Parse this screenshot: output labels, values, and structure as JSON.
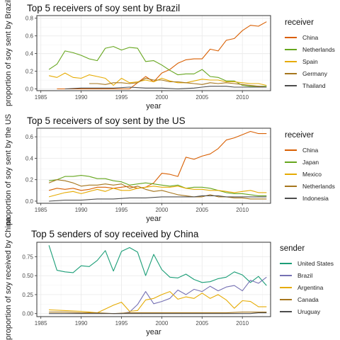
{
  "chart_data": [
    {
      "type": "line",
      "title": "Top 5 receivers of soy sent by Brazil",
      "xlabel": "year",
      "ylabel": "proportion of soy sent by Brazil",
      "xlim": [
        1984.5,
        2013.5
      ],
      "ylim": [
        -0.02,
        0.83
      ],
      "xticks": [
        1985,
        1990,
        1995,
        2000,
        2005,
        2010
      ],
      "yticks": [
        0.0,
        0.2,
        0.4,
        0.6,
        0.8
      ],
      "grid": true,
      "legend_title": "receiver",
      "legend_position": "right",
      "series": [
        {
          "name": "China",
          "color": "#d95f02",
          "x": [
            1987,
            1988,
            1989,
            1990,
            1991,
            1992,
            1993,
            1994,
            1995,
            1996,
            1997,
            1998,
            1999,
            2000,
            2001,
            2002,
            2003,
            2004,
            2005,
            2006,
            2007,
            2008,
            2009,
            2010,
            2011,
            2012,
            2013
          ],
          "y": [
            0,
            0,
            0,
            0,
            0,
            0,
            0,
            0,
            0,
            0,
            0.07,
            0.14,
            0.08,
            0.18,
            0.22,
            0.29,
            0.33,
            0.34,
            0.34,
            0.45,
            0.43,
            0.55,
            0.57,
            0.66,
            0.72,
            0.71,
            0.76
          ]
        },
        {
          "name": "Netherlands",
          "color": "#66a61e",
          "x": [
            1986,
            1987,
            1988,
            1989,
            1990,
            1991,
            1992,
            1993,
            1994,
            1995,
            1996,
            1997,
            1998,
            1999,
            2000,
            2001,
            2002,
            2003,
            2004,
            2005,
            2006,
            2007,
            2008,
            2009,
            2010,
            2011,
            2012,
            2013
          ],
          "y": [
            0.22,
            0.28,
            0.43,
            0.41,
            0.38,
            0.34,
            0.32,
            0.46,
            0.48,
            0.44,
            0.47,
            0.46,
            0.31,
            0.32,
            0.27,
            0.21,
            0.16,
            0.17,
            0.17,
            0.22,
            0.14,
            0.13,
            0.09,
            0.09,
            0.04,
            0.03,
            0.03,
            0.03
          ]
        },
        {
          "name": "Spain",
          "color": "#e6ab02",
          "x": [
            1986,
            1987,
            1988,
            1989,
            1990,
            1991,
            1992,
            1993,
            1994,
            1995,
            1996,
            1997,
            1998,
            1999,
            2000,
            2001,
            2002,
            2003,
            2004,
            2005,
            2006,
            2007,
            2008,
            2009,
            2010,
            2011,
            2012,
            2013
          ],
          "y": [
            0.15,
            0.13,
            0.18,
            0.13,
            0.12,
            0.16,
            0.14,
            0.12,
            0.04,
            0.12,
            0.07,
            0.08,
            0.1,
            0.08,
            0.12,
            0.09,
            0.07,
            0.07,
            0.09,
            0.11,
            0.1,
            0.1,
            0.08,
            0.08,
            0.07,
            0.06,
            0.06,
            0.04
          ]
        },
        {
          "name": "Germany",
          "color": "#a6761d",
          "x": [
            1991,
            1992,
            1993,
            1994,
            1995,
            1996,
            1997,
            1998,
            1999,
            2000,
            2001,
            2002,
            2003,
            2004,
            2005,
            2006,
            2007,
            2008,
            2009,
            2010,
            2011,
            2012,
            2013
          ],
          "y": [
            0.06,
            0.06,
            0.05,
            0.07,
            0.07,
            0.06,
            0.07,
            0.12,
            0.1,
            0.1,
            0.08,
            0.08,
            0.07,
            0.06,
            0.05,
            0.07,
            0.06,
            0.07,
            0.06,
            0.05,
            0.04,
            0.03,
            0.02
          ]
        },
        {
          "name": "Thailand",
          "color": "#4d4d4d",
          "x": [
            1988,
            1990,
            1992,
            1994,
            1996,
            1998,
            2000,
            2002,
            2004,
            2005,
            2006,
            2007,
            2008,
            2009,
            2010,
            2011,
            2012,
            2013
          ],
          "y": [
            0,
            0.01,
            0.01,
            0.01,
            0.02,
            0.01,
            0.01,
            0,
            0.01,
            0.02,
            0.03,
            0.03,
            0.03,
            0.02,
            0.02,
            0.02,
            0.02,
            0.02
          ]
        }
      ]
    },
    {
      "type": "line",
      "title": "Top 5 receivers of soy sent by the US",
      "xlabel": "year",
      "ylabel": "proportion of soy sent by the US",
      "xlim": [
        1984.5,
        2013.5
      ],
      "ylim": [
        -0.02,
        0.68
      ],
      "xticks": [
        1985,
        1990,
        1995,
        2000,
        2005,
        2010
      ],
      "yticks": [
        0.0,
        0.2,
        0.4,
        0.6
      ],
      "grid": true,
      "legend_title": "receiver",
      "legend_position": "right",
      "series": [
        {
          "name": "China",
          "color": "#d95f02",
          "x": [
            1986,
            1987,
            1988,
            1989,
            1990,
            1991,
            1992,
            1993,
            1994,
            1995,
            1996,
            1997,
            1998,
            1999,
            2000,
            2001,
            2002,
            2003,
            2004,
            2005,
            2006,
            2007,
            2008,
            2009,
            2010,
            2011,
            2012,
            2013
          ],
          "y": [
            0.1,
            0.12,
            0.11,
            0.12,
            0.1,
            0.11,
            0.13,
            0.13,
            0.12,
            0.13,
            0.14,
            0.12,
            0.13,
            0.17,
            0.26,
            0.25,
            0.23,
            0.41,
            0.39,
            0.42,
            0.44,
            0.49,
            0.57,
            0.59,
            0.62,
            0.65,
            0.63,
            0.63
          ]
        },
        {
          "name": "Japan",
          "color": "#66a61e",
          "x": [
            1986,
            1987,
            1988,
            1989,
            1990,
            1991,
            1992,
            1993,
            1994,
            1995,
            1996,
            1997,
            1998,
            1999,
            2000,
            2001,
            2002,
            2003,
            2004,
            2005,
            2006,
            2007,
            2008,
            2009,
            2010,
            2011,
            2012,
            2013
          ],
          "y": [
            0.19,
            0.2,
            0.23,
            0.23,
            0.24,
            0.23,
            0.21,
            0.21,
            0.19,
            0.18,
            0.15,
            0.16,
            0.17,
            0.16,
            0.15,
            0.14,
            0.15,
            0.12,
            0.13,
            0.13,
            0.12,
            0.1,
            0.08,
            0.07,
            0.07,
            0.06,
            0.05,
            0.05
          ]
        },
        {
          "name": "Mexico",
          "color": "#e6ab02",
          "x": [
            1986,
            1987,
            1988,
            1989,
            1990,
            1991,
            1992,
            1993,
            1994,
            1995,
            1996,
            1997,
            1998,
            1999,
            2000,
            2001,
            2002,
            2003,
            2004,
            2005,
            2006,
            2007,
            2008,
            2009,
            2010,
            2011,
            2012,
            2013
          ],
          "y": [
            0.04,
            0.06,
            0.08,
            0.09,
            0.07,
            0.09,
            0.11,
            0.09,
            0.12,
            0.1,
            0.1,
            0.12,
            0.13,
            0.14,
            0.13,
            0.13,
            0.14,
            0.12,
            0.11,
            0.11,
            0.1,
            0.1,
            0.09,
            0.08,
            0.09,
            0.1,
            0.08,
            0.08
          ]
        },
        {
          "name": "Netherlands",
          "color": "#a6761d",
          "x": [
            1986,
            1987,
            1988,
            1989,
            1990,
            1991,
            1992,
            1993,
            1994,
            1995,
            1996,
            1997,
            1998,
            1999,
            2000,
            2001,
            2002,
            2003,
            2004,
            2005,
            2006,
            2007,
            2008,
            2009,
            2010,
            2011,
            2012,
            2013
          ],
          "y": [
            0.17,
            0.2,
            0.19,
            0.17,
            0.14,
            0.15,
            0.15,
            0.16,
            0.15,
            0.16,
            0.12,
            0.14,
            0.11,
            0.09,
            0.1,
            0.08,
            0.06,
            0.05,
            0.04,
            0.04,
            0.06,
            0.04,
            0.04,
            0.03,
            0.03,
            0.02,
            0.02,
            0.02
          ]
        },
        {
          "name": "Indonesia",
          "color": "#4d4d4d",
          "x": [
            1986,
            1988,
            1990,
            1992,
            1994,
            1996,
            1998,
            2000,
            2002,
            2004,
            2005,
            2006,
            2007,
            2008,
            2009,
            2010,
            2011,
            2012,
            2013
          ],
          "y": [
            0.0,
            0.01,
            0.01,
            0.02,
            0.02,
            0.03,
            0.03,
            0.04,
            0.04,
            0.04,
            0.05,
            0.05,
            0.05,
            0.04,
            0.04,
            0.04,
            0.04,
            0.04,
            0.04
          ]
        }
      ]
    },
    {
      "type": "line",
      "title": "Top 5 senders of soy received by China",
      "xlabel": "year",
      "ylabel": "proportion of soy received by China",
      "xlim": [
        1984.5,
        2013.5
      ],
      "ylim": [
        -0.04,
        0.94
      ],
      "xticks": [
        1985,
        1990,
        1995,
        2000,
        2005,
        2010
      ],
      "yticks": [
        0.0,
        0.25,
        0.5,
        0.75
      ],
      "ytick_labels": [
        "0.00",
        "0.25",
        "0.50",
        "0.75"
      ],
      "grid": true,
      "legend_title": "sender",
      "legend_position": "right",
      "series": [
        {
          "name": "United States",
          "color": "#1b9e77",
          "x": [
            1986,
            1987,
            1988,
            1989,
            1990,
            1991,
            1992,
            1993,
            1994,
            1995,
            1996,
            1997,
            1998,
            1999,
            2000,
            2001,
            2002,
            2003,
            2004,
            2005,
            2006,
            2007,
            2008,
            2009,
            2010,
            2011,
            2012,
            2013
          ],
          "y": [
            0.9,
            0.57,
            0.55,
            0.54,
            0.63,
            0.62,
            0.7,
            0.83,
            0.56,
            0.82,
            0.87,
            0.81,
            0.5,
            0.78,
            0.58,
            0.48,
            0.47,
            0.52,
            0.45,
            0.41,
            0.42,
            0.46,
            0.48,
            0.55,
            0.51,
            0.41,
            0.49,
            0.37
          ]
        },
        {
          "name": "Brazil",
          "color": "#7570b3",
          "x": [
            1994,
            1995,
            1996,
            1997,
            1998,
            1999,
            2000,
            2001,
            2002,
            2003,
            2004,
            2005,
            2006,
            2007,
            2008,
            2009,
            2010,
            2011,
            2012,
            2013
          ],
          "y": [
            0.0,
            0.0,
            0.02,
            0.12,
            0.29,
            0.13,
            0.16,
            0.2,
            0.31,
            0.25,
            0.32,
            0.29,
            0.36,
            0.3,
            0.35,
            0.37,
            0.3,
            0.44,
            0.4,
            0.48
          ]
        },
        {
          "name": "Argentina",
          "color": "#e6ab02",
          "x": [
            1986,
            1988,
            1990,
            1992,
            1994,
            1995,
            1996,
            1997,
            1998,
            1999,
            2000,
            2001,
            2002,
            2003,
            2004,
            2005,
            2006,
            2007,
            2008,
            2009,
            2010,
            2011,
            2012,
            2013
          ],
          "y": [
            0.05,
            0.04,
            0.03,
            0.01,
            0.11,
            0.15,
            0.03,
            0.04,
            0.18,
            0.2,
            0.25,
            0.29,
            0.19,
            0.22,
            0.2,
            0.27,
            0.2,
            0.25,
            0.18,
            0.07,
            0.17,
            0.16,
            0.09,
            0.09
          ]
        },
        {
          "name": "Canada",
          "color": "#a6761d",
          "x": [
            1986,
            1988,
            1990,
            1992,
            1994,
            1996,
            1998,
            2000,
            2002,
            2004,
            2006,
            2008,
            2010,
            2011,
            2012,
            2013
          ],
          "y": [
            0.02,
            0.02,
            0.01,
            0.01,
            0.0,
            0.01,
            0.01,
            0.01,
            0.01,
            0.01,
            0.01,
            0.01,
            0.02,
            0.02,
            0.02,
            0.02
          ]
        },
        {
          "name": "Uruguay",
          "color": "#4d4d4d",
          "x": [
            1986,
            1990,
            1995,
            2000,
            2005,
            2008,
            2010,
            2011,
            2012,
            2013
          ],
          "y": [
            0.0,
            0.0,
            0.0,
            0.0,
            0.0,
            0.0,
            0.0,
            0.0,
            0.01,
            0.01
          ]
        }
      ]
    }
  ]
}
